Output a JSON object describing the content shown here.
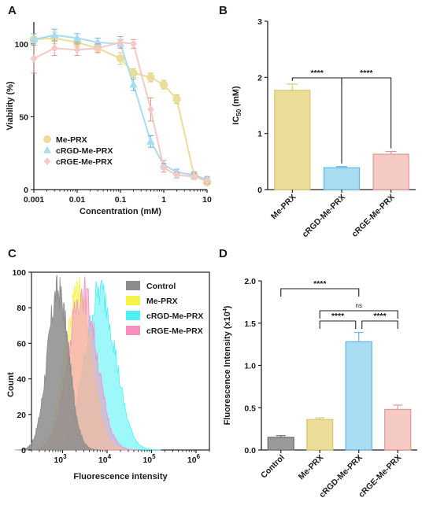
{
  "figure": {
    "panels": [
      "A",
      "B",
      "C",
      "D"
    ]
  },
  "colors": {
    "me_prx": "#ebdc98",
    "me_prx_dark": "#d9c873",
    "crgd": "#a8dcf0",
    "crgd_dark": "#62b8e0",
    "crge": "#f5c9c4",
    "crge_dark": "#e0968e",
    "control": "#9a9a9a",
    "control_dark": "#6e6e6e",
    "flow_control": "#8c8c8c",
    "flow_me_prx": "#f7f24a",
    "flow_crgd": "#4ff0f4",
    "flow_crge": "#f58fc0"
  },
  "chart_data": [
    {
      "panel": "A",
      "type": "line",
      "xlabel": "Concentration (mM)",
      "ylabel": "Viability (%)",
      "xscale": "log",
      "xlim": [
        0.001,
        10
      ],
      "ylim": [
        0,
        115
      ],
      "xticks": [
        0.001,
        0.01,
        0.1,
        1,
        10
      ],
      "xtick_labels": [
        "0.001",
        "0.01",
        "0.1",
        "1",
        "10"
      ],
      "yticks": [
        0,
        50,
        100
      ],
      "ytick_labels": [
        "0",
        "50",
        "100"
      ],
      "legend_position": "bottom-left",
      "series": [
        {
          "name": "Me-PRX",
          "marker": "circle",
          "x": [
            0.001,
            0.003,
            0.01,
            0.03,
            0.1,
            0.2,
            0.5,
            1,
            2,
            5,
            10
          ],
          "y": [
            103,
            104,
            101,
            97,
            90,
            80,
            77,
            72,
            62,
            10,
            5
          ],
          "err": [
            4,
            4,
            3,
            3,
            4,
            3,
            3,
            3,
            3,
            2,
            2
          ]
        },
        {
          "name": "cRGD-Me-PRX",
          "marker": "triangle",
          "x": [
            0.001,
            0.003,
            0.01,
            0.03,
            0.1,
            0.2,
            0.5,
            1,
            2,
            5,
            10
          ],
          "y": [
            103,
            106,
            104,
            101,
            100,
            72,
            33,
            17,
            12,
            10,
            7
          ],
          "err": [
            4,
            4,
            3,
            3,
            3,
            4,
            4,
            3,
            2,
            2,
            2
          ]
        },
        {
          "name": "cRGE-Me-PRX",
          "marker": "diamond",
          "x": [
            0.001,
            0.003,
            0.01,
            0.03,
            0.1,
            0.2,
            0.5,
            1,
            2,
            5,
            10
          ],
          "y": [
            90,
            97,
            96,
            97,
            101,
            100,
            55,
            15,
            10,
            9,
            6
          ],
          "err": [
            10,
            5,
            4,
            3,
            4,
            3,
            8,
            3,
            2,
            2,
            2
          ]
        }
      ]
    },
    {
      "panel": "B",
      "type": "bar",
      "ylabel_main": "IC",
      "ylabel_sub": "50",
      "ylabel_unit": " (mM)",
      "ylim": [
        0,
        3
      ],
      "yticks": [
        0,
        1,
        2,
        3
      ],
      "ytick_labels": [
        "0",
        "1",
        "2",
        "3"
      ],
      "categories": [
        "Me-PRX",
        "cRGD-Me-PRX",
        "cRGE-Me-PRX"
      ],
      "values": [
        1.77,
        0.39,
        0.63
      ],
      "err": [
        0.11,
        0.02,
        0.05
      ],
      "significance": [
        {
          "from": 0,
          "to": 1,
          "label": "****"
        },
        {
          "from": 1,
          "to": 2,
          "label": "****"
        }
      ]
    },
    {
      "panel": "C",
      "type": "area",
      "xlabel": "Fluorescence intensity",
      "ylabel": "Count",
      "xscale": "log",
      "xlim": [
        200,
        2000000
      ],
      "ylim": [
        0,
        100
      ],
      "xticks": [
        1000,
        10000,
        100000,
        1000000
      ],
      "xtick_base": "10",
      "xtick_exponents": [
        "3",
        "4",
        "5",
        "6"
      ],
      "yticks": [
        0,
        20,
        40,
        60,
        80,
        100
      ],
      "ytick_labels": [
        "0",
        "20",
        "40",
        "60",
        "80",
        "100"
      ],
      "legend_position": "top-right",
      "series": [
        {
          "name": "Control",
          "log_peak": 2.9,
          "log_sigma": 0.24
        },
        {
          "name": "Me-PRX",
          "log_peak": 3.35,
          "log_sigma": 0.3
        },
        {
          "name": "cRGD-Me-PRX",
          "log_peak": 3.85,
          "log_sigma": 0.34
        },
        {
          "name": "cRGE-Me-PRX",
          "log_peak": 3.45,
          "log_sigma": 0.32
        }
      ]
    },
    {
      "panel": "D",
      "type": "bar",
      "ylabel_main": "Fluorescence Intensity (x10",
      "ylabel_sup": "4",
      "ylabel_end": ")",
      "ylim": [
        0,
        2.0
      ],
      "yticks": [
        0,
        0.5,
        1.0,
        1.5,
        2.0
      ],
      "ytick_labels": [
        "0.0",
        "0.5",
        "1.0",
        "1.5",
        "2.0"
      ],
      "categories": [
        "Control",
        "Me-PRX",
        "cRGD-Me-PRX",
        "cRGE-Me-PRX"
      ],
      "values": [
        0.15,
        0.36,
        1.28,
        0.48
      ],
      "err": [
        0.02,
        0.02,
        0.11,
        0.05
      ],
      "significance": [
        {
          "from": 0,
          "to": 2,
          "label": "****",
          "level": 0
        },
        {
          "from": 1,
          "to": 3,
          "label": "ns",
          "level": 1
        },
        {
          "from": 1,
          "to": 2,
          "label": "****",
          "level": 2
        },
        {
          "from": 2,
          "to": 3,
          "label": "****",
          "level": 2
        }
      ]
    }
  ]
}
